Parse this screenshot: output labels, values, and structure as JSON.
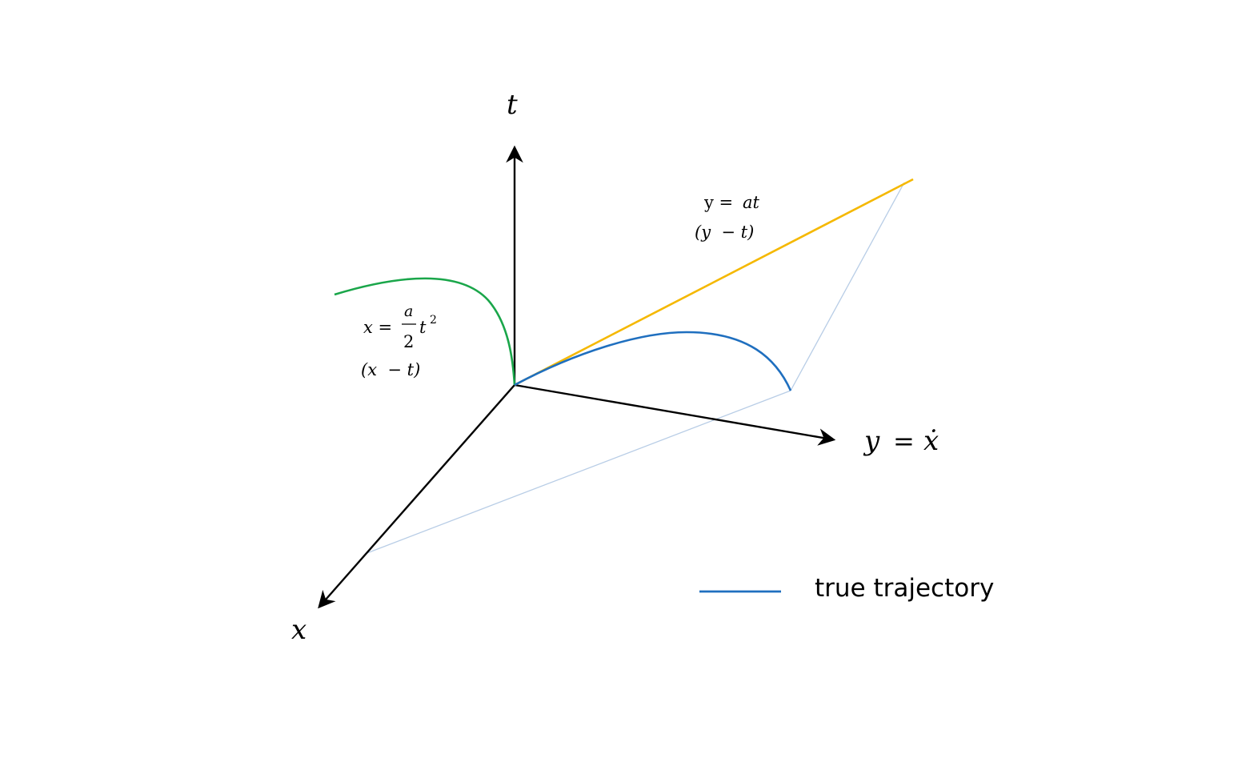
{
  "colors": {
    "axis": "#000000",
    "true_trajectory": "#1f6fbf",
    "x_vs_t_curve": "#1aa64a",
    "y_vs_t_line": "#f5b800",
    "projection_lines": "#b8cde6",
    "background": "#ffffff"
  },
  "axes": {
    "t_label": "t",
    "x_label": "x",
    "y_label_lhs": "y",
    "y_label_eq": "=",
    "y_label_rhs": "ẋ"
  },
  "annotations": {
    "x_curve": {
      "lhs": "x =",
      "frac_num": "a",
      "frac_den": "2",
      "tail": "t",
      "exponent": "2",
      "plane": "(x  − t)"
    },
    "y_line": {
      "equation_lhs": "y =",
      "equation_rhs": "at",
      "plane": "(y  − t)"
    }
  },
  "legend": {
    "items": [
      {
        "label": "true trajectory",
        "color_key": "true_trajectory"
      }
    ]
  }
}
